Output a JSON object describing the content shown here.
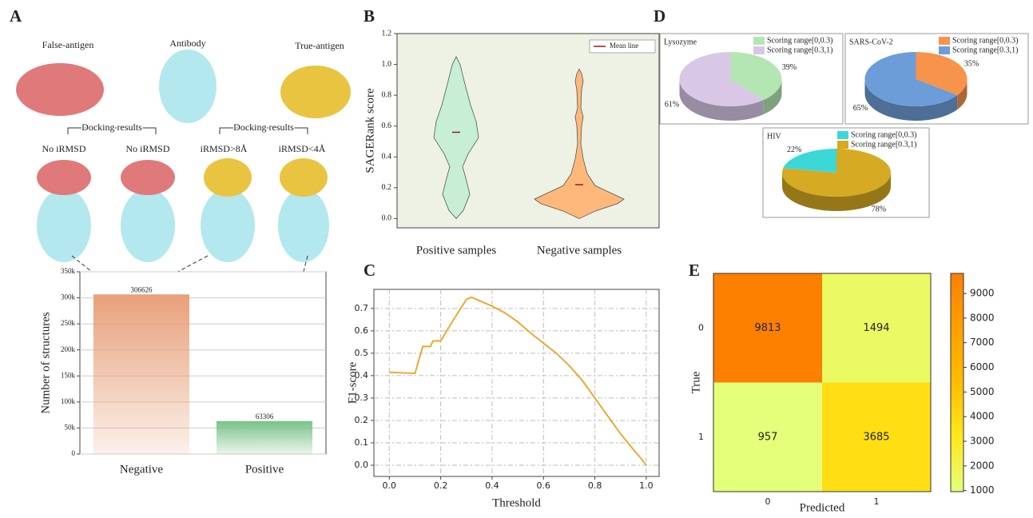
{
  "chart_data": [
    {
      "panel": "A",
      "type": "bar",
      "annotations": [
        "False-antigen",
        "Antibody",
        "True-antigen",
        "Docking results",
        "Docking results",
        "No iRMSD",
        "No iRMSD",
        "iRMSD>8Å",
        "iRMSD<4Å"
      ],
      "categories": [
        "Negative",
        "Positive"
      ],
      "values": [
        306626,
        63306
      ],
      "colors": [
        "#e8a07a",
        "#78c288"
      ],
      "ylabel": "Number of structures",
      "ylim": [
        0,
        350000
      ],
      "yticks": [
        0,
        {
          "value": 50000,
          "label": "50k"
        },
        {
          "value": 100000,
          "label": "100k"
        },
        {
          "value": 150000,
          "label": "150k"
        },
        {
          "value": 200000,
          "label": "200k"
        },
        {
          "value": 250000,
          "label": "250k"
        },
        {
          "value": 300000,
          "label": "300k"
        },
        {
          "value": 350000,
          "label": "350k"
        }
      ],
      "grid": true
    },
    {
      "panel": "B",
      "type": "violin",
      "categories": [
        "Positive samples",
        "Negative samples"
      ],
      "values": [
        0.56,
        0.22
      ],
      "min": [
        0.0,
        0.0
      ],
      "max": [
        1.05,
        0.97
      ],
      "colors": [
        "#c6efd6",
        "#fdb87a"
      ],
      "mean_color": "#a01818",
      "legend": "Mean line",
      "ylabel": "SAGERank score",
      "ylim": [
        -0.06,
        1.2
      ],
      "yticks": [
        {
          "value": 0,
          "label": "0.0"
        },
        {
          "value": 0.2,
          "label": "0.2"
        },
        {
          "value": 0.4,
          "label": "0.4"
        },
        {
          "value": 0.6,
          "label": "0.6"
        },
        {
          "value": 0.8,
          "label": "0.8"
        },
        {
          "value": 1,
          "label": "1.0"
        },
        {
          "value": 1.2,
          "label": "1.2"
        }
      ]
    },
    {
      "panel": "C",
      "type": "line",
      "xlabel": "Threshold",
      "ylabel": "F1-score",
      "color": "#f0a020",
      "grid": true,
      "x": [
        0,
        0.1,
        0.13,
        0.16,
        0.17,
        0.2,
        0.25,
        0.3,
        0.32,
        0.35,
        0.4,
        0.45,
        0.5,
        0.55,
        0.6,
        0.65,
        0.7,
        0.75,
        0.8,
        0.85,
        0.9,
        0.95,
        0.98,
        1.0
      ],
      "values": [
        0.415,
        0.41,
        0.53,
        0.53,
        0.555,
        0.555,
        0.65,
        0.74,
        0.75,
        0.735,
        0.71,
        0.68,
        0.64,
        0.59,
        0.545,
        0.5,
        0.445,
        0.38,
        0.3,
        0.22,
        0.14,
        0.07,
        0.03,
        0.0
      ],
      "xlim": [
        -0.06,
        1.05
      ],
      "xticks": [
        {
          "value": 0,
          "label": "0.0"
        },
        {
          "value": 0.2,
          "label": "0.2"
        },
        {
          "value": 0.4,
          "label": "0.4"
        },
        {
          "value": 0.6,
          "label": "0.6"
        },
        {
          "value": 0.8,
          "label": "0.8"
        },
        {
          "value": 1,
          "label": "1.0"
        }
      ],
      "ylim": [
        -0.05,
        0.785
      ],
      "yticks": [
        {
          "value": 0,
          "label": "0.0"
        },
        {
          "value": 0.1,
          "label": "0.1"
        },
        {
          "value": 0.2,
          "label": "0.2"
        },
        {
          "value": 0.3,
          "label": "0.3"
        },
        {
          "value": 0.4,
          "label": "0.4"
        },
        {
          "value": 0.5,
          "label": "0.5"
        },
        {
          "value": 0.6,
          "label": "0.6"
        },
        {
          "value": 0.7,
          "label": "0.7"
        }
      ]
    },
    {
      "panel": "D",
      "type": "pie",
      "title": "Lysozyme",
      "labels": [
        "Scoring range[0,0.3)",
        "Scoring range[0.3,1)"
      ],
      "values": [
        39,
        61
      ],
      "value_labels": [
        "39%",
        "61%"
      ],
      "colors": [
        "#b4e6b4",
        "#d8c8e6"
      ],
      "startangle": 0,
      "counterclock": false
    },
    {
      "type": "pie",
      "title": "SARS-CoV-2",
      "labels": [
        "Scoring range[0,0.3)",
        "Scoring range[0.3,1)"
      ],
      "values": [
        35,
        65
      ],
      "value_labels": [
        "35%",
        "65%"
      ],
      "colors": [
        "#f7934a",
        "#6c9dd8"
      ],
      "startangle": 0,
      "counterclock": false
    },
    {
      "type": "pie",
      "title": "HIV",
      "labels": [
        "Scoring range[0,0.3)",
        "Scoring range[0.3,1)"
      ],
      "values": [
        22,
        78
      ],
      "value_labels": [
        "22%",
        "78%"
      ],
      "colors": [
        "#3cd8d8",
        "#d6aa22"
      ],
      "startangle": 0,
      "counterclock": true
    },
    {
      "panel": "E",
      "type": "heatmap",
      "xlabel": "Predicted",
      "ylabel": "True",
      "categories": [
        "0",
        "1"
      ],
      "values": [
        [
          9813,
          1494
        ],
        [
          957,
          3685
        ]
      ],
      "clim": [
        957,
        9813
      ],
      "cticks": [
        1000,
        2000,
        3000,
        4000,
        5000,
        6000,
        7000,
        8000,
        9000
      ],
      "colormap": [
        "#e4ff7a",
        "#ffe81a",
        "#ffbd00",
        "#ffa000",
        "#fc7f00"
      ]
    }
  ]
}
